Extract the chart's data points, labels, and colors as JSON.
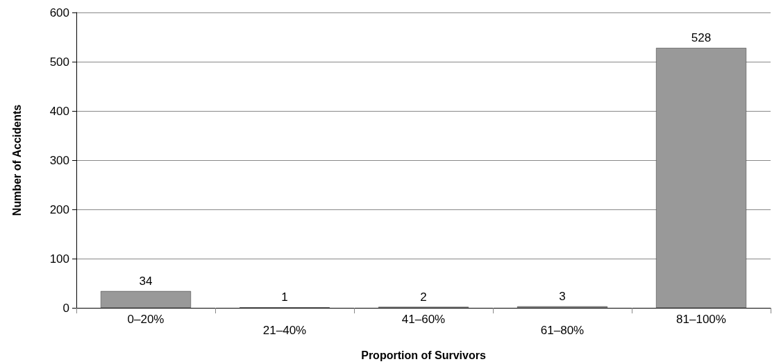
{
  "chart_data": {
    "type": "bar",
    "xlabel": "Proportion of Survivors",
    "ylabel": "Number of Accidents",
    "categories": [
      "0–20%",
      "21–40%",
      "41–60%",
      "61–80%",
      "81–100%"
    ],
    "values": [
      34,
      1,
      2,
      3,
      528
    ],
    "color": "#999999",
    "ylim": [
      0,
      600
    ],
    "yticks": [
      0,
      100,
      200,
      300,
      400,
      500,
      600
    ],
    "grid": "y",
    "data_labels": true
  }
}
